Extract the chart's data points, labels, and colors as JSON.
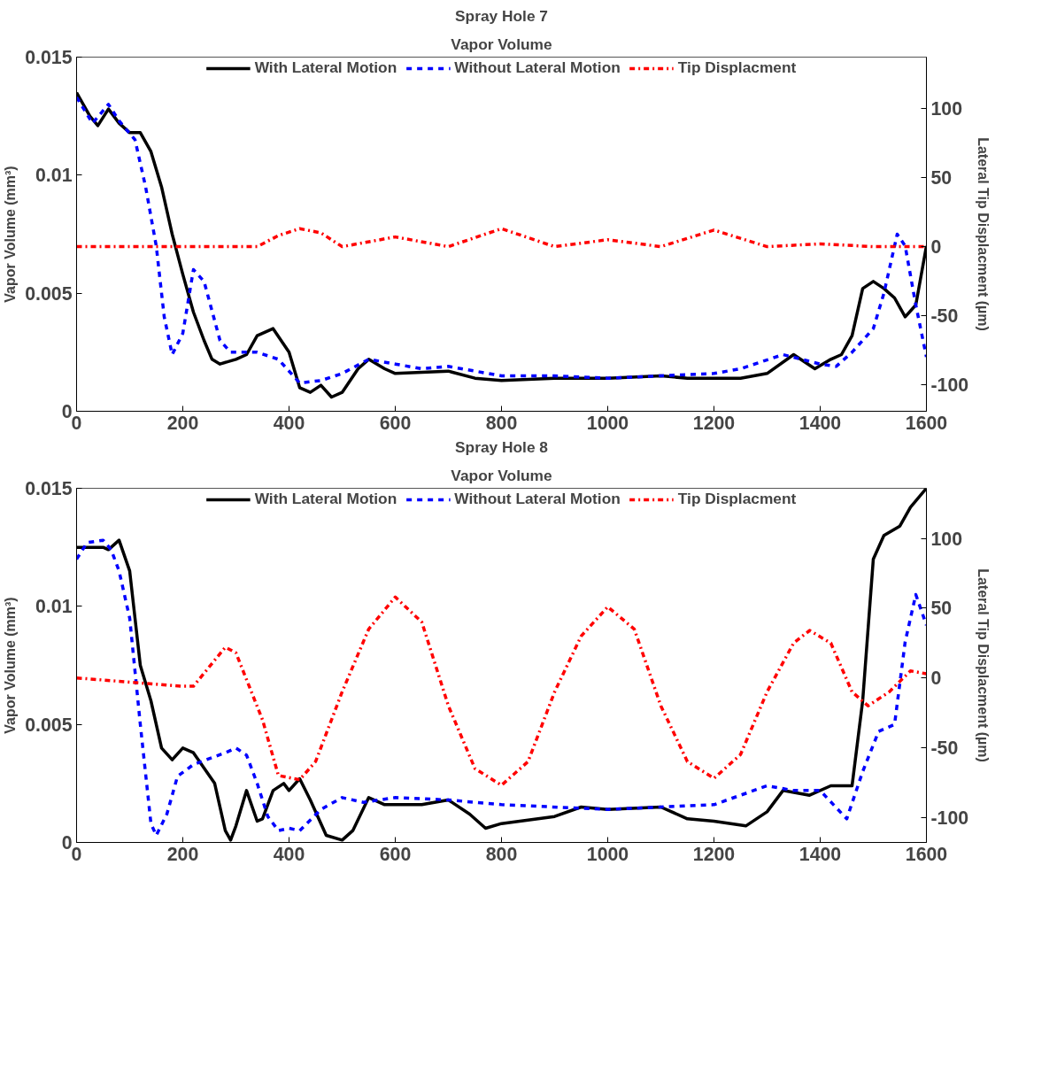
{
  "chart_data": [
    {
      "type": "line",
      "title": "Spray Hole 7",
      "subtitle": "Vapor Volume",
      "ylabel": "Vapor Volume (mm³)",
      "y2label": "Lateral Tip Displacment (µm)",
      "xlim": [
        0,
        1600
      ],
      "xticks": [
        0,
        200,
        400,
        600,
        800,
        1000,
        1200,
        1400,
        1600
      ],
      "ylim": [
        0,
        0.015
      ],
      "yticks": [
        0,
        0.005,
        0.01,
        0.015
      ],
      "y2lim": [
        -119,
        137
      ],
      "y2ticks": [
        -100,
        -50,
        0,
        50,
        100
      ],
      "grid": false,
      "legend": "top",
      "series": [
        {
          "name": "With Lateral Motion",
          "color": "#000000",
          "line_style": "solid",
          "x": [
            0,
            25,
            40,
            60,
            80,
            100,
            120,
            140,
            160,
            180,
            200,
            220,
            240,
            255,
            270,
            300,
            320,
            340,
            370,
            400,
            420,
            440,
            460,
            480,
            500,
            530,
            550,
            580,
            600,
            700,
            750,
            800,
            900,
            1000,
            1100,
            1150,
            1250,
            1300,
            1350,
            1390,
            1420,
            1440,
            1460,
            1480,
            1500,
            1520,
            1540,
            1560,
            1580,
            1600
          ],
          "values": [
            0.0135,
            0.0125,
            0.0121,
            0.0128,
            0.0122,
            0.0118,
            0.0118,
            0.011,
            0.0095,
            0.0075,
            0.0058,
            0.0042,
            0.003,
            0.0022,
            0.002,
            0.0022,
            0.0024,
            0.0032,
            0.0035,
            0.0025,
            0.001,
            0.0008,
            0.0011,
            0.0006,
            0.0008,
            0.0018,
            0.0022,
            0.0018,
            0.0016,
            0.0017,
            0.0014,
            0.0013,
            0.0014,
            0.0014,
            0.0015,
            0.0014,
            0.0014,
            0.0016,
            0.0024,
            0.0018,
            0.0022,
            0.0024,
            0.0032,
            0.0052,
            0.0055,
            0.0052,
            0.0048,
            0.004,
            0.0045,
            0.007
          ]
        },
        {
          "name": "Without Lateral Motion",
          "color": "#0000ff",
          "line_style": "dashed",
          "x": [
            0,
            30,
            60,
            80,
            110,
            130,
            150,
            165,
            180,
            200,
            220,
            240,
            270,
            290,
            340,
            380,
            420,
            460,
            500,
            550,
            600,
            650,
            700,
            800,
            900,
            1000,
            1100,
            1200,
            1250,
            1330,
            1400,
            1430,
            1460,
            1500,
            1520,
            1545,
            1560,
            1580,
            1600
          ],
          "values": [
            0.0133,
            0.0122,
            0.013,
            0.0123,
            0.0115,
            0.0095,
            0.007,
            0.004,
            0.0024,
            0.0033,
            0.006,
            0.0055,
            0.003,
            0.0025,
            0.0025,
            0.0022,
            0.0012,
            0.0013,
            0.0016,
            0.0022,
            0.002,
            0.0018,
            0.0019,
            0.0015,
            0.0015,
            0.0014,
            0.0015,
            0.0016,
            0.0018,
            0.0024,
            0.002,
            0.0019,
            0.0025,
            0.0035,
            0.005,
            0.0075,
            0.007,
            0.0045,
            0.0023
          ]
        },
        {
          "name": "Tip Displacment",
          "color": "#ff0000",
          "line_style": "dashdot",
          "axis": "y2",
          "x": [
            0,
            340,
            380,
            420,
            460,
            500,
            600,
            700,
            800,
            900,
            1000,
            1100,
            1200,
            1300,
            1400,
            1500,
            1600
          ],
          "values": [
            0,
            0,
            8,
            13,
            10,
            0,
            7,
            0,
            13,
            0,
            5,
            0,
            12,
            0,
            2,
            0,
            0
          ]
        }
      ]
    },
    {
      "type": "line",
      "title": "Spray Hole 8",
      "subtitle": "Vapor Volume",
      "ylabel": "Vapor Volume (mm³)",
      "y2label": "Lateral Tip Displacment (µm)",
      "xlim": [
        0,
        1600
      ],
      "xticks": [
        0,
        200,
        400,
        600,
        800,
        1000,
        1200,
        1400,
        1600
      ],
      "ylim": [
        0,
        0.015
      ],
      "yticks": [
        0,
        0.005,
        0.01,
        0.015
      ],
      "y2lim": [
        -118,
        136
      ],
      "y2ticks": [
        -100,
        -50,
        0,
        50,
        100
      ],
      "grid": false,
      "legend": "top",
      "series": [
        {
          "name": "With Lateral Motion",
          "color": "#000000",
          "line_style": "solid",
          "x": [
            0,
            50,
            60,
            80,
            100,
            120,
            140,
            160,
            180,
            200,
            220,
            260,
            280,
            290,
            300,
            320,
            340,
            350,
            370,
            390,
            400,
            420,
            440,
            470,
            500,
            520,
            550,
            580,
            650,
            700,
            740,
            770,
            800,
            900,
            950,
            1000,
            1100,
            1150,
            1200,
            1260,
            1300,
            1330,
            1380,
            1420,
            1460,
            1480,
            1500,
            1520,
            1550,
            1570,
            1600
          ],
          "values": [
            0.0125,
            0.0125,
            0.0124,
            0.0128,
            0.0115,
            0.0075,
            0.006,
            0.004,
            0.0035,
            0.004,
            0.0038,
            0.0025,
            0.0005,
            0.0001,
            0.0007,
            0.0022,
            0.0009,
            0.001,
            0.0022,
            0.0025,
            0.0022,
            0.0027,
            0.0018,
            0.0003,
            0.0001,
            0.0005,
            0.0019,
            0.0016,
            0.0016,
            0.0018,
            0.0012,
            0.0006,
            0.0008,
            0.0011,
            0.0015,
            0.0014,
            0.0015,
            0.001,
            0.0009,
            0.0007,
            0.0013,
            0.0022,
            0.002,
            0.0024,
            0.0024,
            0.006,
            0.012,
            0.013,
            0.0134,
            0.0142,
            0.015
          ]
        },
        {
          "name": "Without Lateral Motion",
          "color": "#0000ff",
          "line_style": "dashed",
          "x": [
            0,
            20,
            50,
            65,
            80,
            100,
            120,
            140,
            150,
            170,
            190,
            220,
            280,
            300,
            320,
            340,
            360,
            380,
            400,
            420,
            460,
            500,
            540,
            600,
            700,
            800,
            1000,
            1200,
            1300,
            1350,
            1400,
            1450,
            1480,
            1510,
            1540,
            1560,
            1580,
            1600
          ],
          "values": [
            0.012,
            0.0127,
            0.0128,
            0.0124,
            0.0115,
            0.0095,
            0.005,
            0.0008,
            0.0003,
            0.0012,
            0.0028,
            0.0033,
            0.0038,
            0.004,
            0.0037,
            0.0025,
            0.0011,
            0.0005,
            0.0006,
            0.0005,
            0.0014,
            0.0019,
            0.0017,
            0.0019,
            0.0018,
            0.0016,
            0.0014,
            0.0016,
            0.0024,
            0.0022,
            0.0022,
            0.001,
            0.003,
            0.0047,
            0.005,
            0.0085,
            0.0105,
            0.0092
          ]
        },
        {
          "name": "Tip Displacment",
          "color": "#ff0000",
          "line_style": "dashdot",
          "axis": "y2",
          "x": [
            0,
            100,
            200,
            220,
            280,
            300,
            350,
            380,
            420,
            450,
            500,
            550,
            600,
            650,
            700,
            750,
            800,
            850,
            900,
            950,
            1000,
            1050,
            1100,
            1150,
            1200,
            1250,
            1300,
            1350,
            1380,
            1420,
            1460,
            1490,
            1530,
            1570,
            1600
          ],
          "values": [
            0,
            -3,
            -6,
            -6,
            22,
            18,
            -30,
            -70,
            -73,
            -60,
            -10,
            35,
            58,
            40,
            -20,
            -65,
            -77,
            -60,
            -10,
            30,
            51,
            35,
            -20,
            -60,
            -72,
            -55,
            -10,
            25,
            34,
            25,
            -10,
            -20,
            -10,
            5,
            3
          ]
        }
      ]
    }
  ]
}
